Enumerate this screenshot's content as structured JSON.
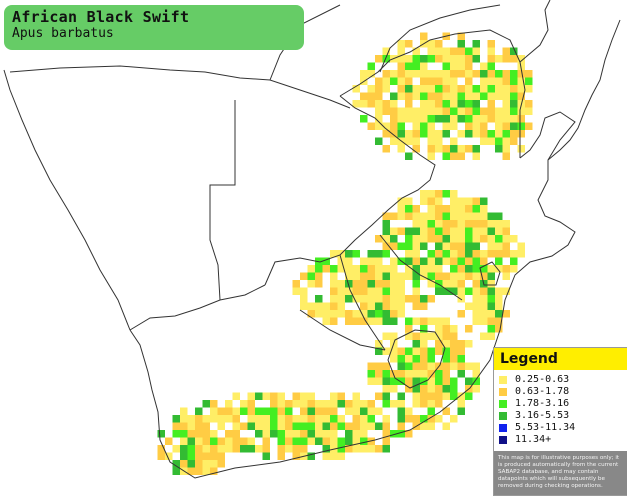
{
  "title": {
    "common_name": "African Black Swift",
    "scientific_name": "Apus barbatus"
  },
  "legend": {
    "heading": "Legend",
    "items": [
      {
        "label": "0.25-0.63",
        "color": "#ffee66"
      },
      {
        "label": "0.63-1.78",
        "color": "#ffcc44"
      },
      {
        "label": "1.78-3.16",
        "color": "#44ee22"
      },
      {
        "label": "3.16-5.53",
        "color": "#33bb33"
      },
      {
        "label": "5.53-11.34",
        "color": "#1122ee"
      },
      {
        "label": "11.34+",
        "color": "#111188"
      }
    ],
    "disclaimer": "This map is for illustrative purposes only; it is produced automatically from the current SABAP2 database, and may contain datapoints which will subsequently be removed during checking operations."
  },
  "colors": {
    "background": "#ffffff",
    "border_lines": "#333333",
    "title_box": "#66cc66",
    "legend_header": "#ffee00"
  }
}
